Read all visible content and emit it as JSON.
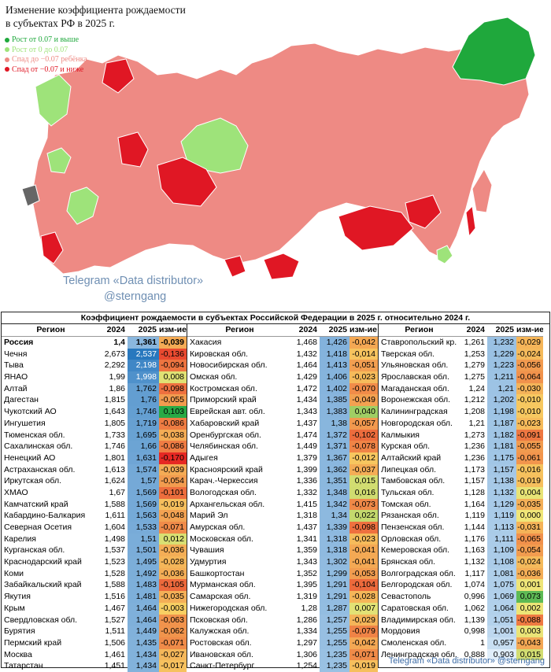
{
  "map": {
    "title_line1": "Изменение коэффициента рождаемости",
    "title_line2": "в субъектах РФ в 2025 г.",
    "legend": [
      {
        "label": "Рост от 0.07 и выше",
        "color": "#1fa83c"
      },
      {
        "label": "Рост от 0 до 0.07",
        "color": "#9ee37a"
      },
      {
        "label": "Спад до −0.07 ребёнка",
        "color": "#ee8a84"
      },
      {
        "label": "Спад от −0.07 и ниже",
        "color": "#e01724"
      }
    ],
    "watermark_line1": "Telegram «Data distributor»",
    "watermark_line2": "@sterngang"
  },
  "chart_data": {
    "type": "table",
    "title": "Коэффициент рождаемости в субъектах Российской Федерации в 2025 г. относительно 2024 г.",
    "headers": [
      "Регион",
      "2024",
      "2025",
      "изм-ие"
    ],
    "columns": [
      [
        [
          "Россия",
          "1,4",
          "1,361",
          "-0,039"
        ],
        [
          "Чечня",
          "2,673",
          "2,537",
          "-0,136"
        ],
        [
          "Тыва",
          "2,292",
          "2,198",
          "-0,094"
        ],
        [
          "ЯНАО",
          "1,99",
          "1,998",
          "0,008"
        ],
        [
          "Алтай",
          "1,86",
          "1,762",
          "-0,098"
        ],
        [
          "Дагестан",
          "1,815",
          "1,76",
          "-0,055"
        ],
        [
          "Чукотский АО",
          "1,643",
          "1,746",
          "0,103"
        ],
        [
          "Ингушетия",
          "1,805",
          "1,719",
          "-0,086"
        ],
        [
          "Тюменская обл.",
          "1,733",
          "1,695",
          "-0,038"
        ],
        [
          "Сахалинская обл.",
          "1,746",
          "1,66",
          "-0,086"
        ],
        [
          "Ненецкий АО",
          "1,801",
          "1,631",
          "-0,170"
        ],
        [
          "Астраханская обл.",
          "1,613",
          "1,574",
          "-0,039"
        ],
        [
          "Иркутская обл.",
          "1,624",
          "1,57",
          "-0,054"
        ],
        [
          "ХМАО",
          "1,67",
          "1,569",
          "-0,101"
        ],
        [
          "Камчатский край",
          "1,588",
          "1,569",
          "-0,019"
        ],
        [
          "Кабардино-Балкария",
          "1,611",
          "1,563",
          "-0,048"
        ],
        [
          "Северная Осетия",
          "1,604",
          "1,533",
          "-0,071"
        ],
        [
          "Карелия",
          "1,498",
          "1,51",
          "0,012"
        ],
        [
          "Курганская обл.",
          "1,537",
          "1,501",
          "-0,036"
        ],
        [
          "Краснодарский край",
          "1,523",
          "1,495",
          "-0,028"
        ],
        [
          "Коми",
          "1,528",
          "1,492",
          "-0,036"
        ],
        [
          "Забайкальский край",
          "1,588",
          "1,483",
          "-0,105"
        ],
        [
          "Якутия",
          "1,516",
          "1,481",
          "-0,035"
        ],
        [
          "Крым",
          "1,467",
          "1,464",
          "-0,003"
        ],
        [
          "Свердловская обл.",
          "1,527",
          "1,464",
          "-0,063"
        ],
        [
          "Бурятия",
          "1,511",
          "1,449",
          "-0,062"
        ],
        [
          "Пермский край",
          "1,506",
          "1,435",
          "-0,071"
        ],
        [
          "Москва",
          "1,461",
          "1,434",
          "-0,027"
        ],
        [
          "Татарстан",
          "1,451",
          "1,434",
          "-0,017"
        ]
      ],
      [
        [
          "Хакасия",
          "1,468",
          "1,426",
          "-0,042"
        ],
        [
          "Кировская обл.",
          "1,432",
          "1,418",
          "-0,014"
        ],
        [
          "Новосибирская обл.",
          "1,464",
          "1,413",
          "-0,051"
        ],
        [
          "Омская обл.",
          "1,429",
          "1,406",
          "-0,023"
        ],
        [
          "Костромская обл.",
          "1,472",
          "1,402",
          "-0,070"
        ],
        [
          "Приморский край",
          "1,434",
          "1,385",
          "-0,049"
        ],
        [
          "Еврейская авт. обл.",
          "1,343",
          "1,383",
          "0,040"
        ],
        [
          "Хабаровский край",
          "1,437",
          "1,38",
          "-0,057"
        ],
        [
          "Оренбургская обл.",
          "1,474",
          "1,372",
          "-0,102"
        ],
        [
          "Челябинская обл.",
          "1,449",
          "1,371",
          "-0,078"
        ],
        [
          "Адыгея",
          "1,379",
          "1,367",
          "-0,012"
        ],
        [
          "Красноярский край",
          "1,399",
          "1,362",
          "-0,037"
        ],
        [
          "Карач.-Черкессия",
          "1,336",
          "1,351",
          "0,015"
        ],
        [
          "Вологодская обл.",
          "1,332",
          "1,348",
          "0,016"
        ],
        [
          "Архангельская обл.",
          "1,415",
          "1,342",
          "-0,073"
        ],
        [
          "Марий Эл",
          "1,318",
          "1,34",
          "0,022"
        ],
        [
          "Амурская обл.",
          "1,437",
          "1,339",
          "-0,098"
        ],
        [
          "Московская обл.",
          "1,341",
          "1,318",
          "-0,023"
        ],
        [
          "Чувашия",
          "1,359",
          "1,318",
          "-0,041"
        ],
        [
          "Удмуртия",
          "1,343",
          "1,302",
          "-0,041"
        ],
        [
          "Башкортостан",
          "1,352",
          "1,299",
          "-0,053"
        ],
        [
          "Мурманская обл.",
          "1,395",
          "1,291",
          "-0,104"
        ],
        [
          "Самарская обл.",
          "1,319",
          "1,291",
          "-0,028"
        ],
        [
          "Нижегородская обл.",
          "1,28",
          "1,287",
          "0,007"
        ],
        [
          "Псковская обл.",
          "1,286",
          "1,257",
          "-0,029"
        ],
        [
          "Калужская обл.",
          "1,334",
          "1,255",
          "-0,079"
        ],
        [
          "Ростовская обл.",
          "1,297",
          "1,255",
          "-0,042"
        ],
        [
          "Ивановская обл.",
          "1,306",
          "1,235",
          "-0,071"
        ],
        [
          "Санкт-Петербург",
          "1,254",
          "1,235",
          "-0,019"
        ]
      ],
      [
        [
          "Ставропольский кр.",
          "1,261",
          "1,232",
          "-0,029"
        ],
        [
          "Тверская обл.",
          "1,253",
          "1,229",
          "-0,024"
        ],
        [
          "Ульяновская обл.",
          "1,279",
          "1,223",
          "-0,056"
        ],
        [
          "Ярославская обл.",
          "1,275",
          "1,211",
          "-0,064"
        ],
        [
          "Магаданская обл.",
          "1,24",
          "1,21",
          "-0,030"
        ],
        [
          "Воронежская обл.",
          "1,212",
          "1,202",
          "-0,010"
        ],
        [
          "Калининградская",
          "1,208",
          "1,198",
          "-0,010"
        ],
        [
          "Новгородская обл.",
          "1,21",
          "1,187",
          "-0,023"
        ],
        [
          "Калмыкия",
          "1,273",
          "1,182",
          "-0,091"
        ],
        [
          "Курская обл.",
          "1,236",
          "1,181",
          "-0,055"
        ],
        [
          "Алтайский край",
          "1,236",
          "1,175",
          "-0,061"
        ],
        [
          "Липецкая обл.",
          "1,173",
          "1,157",
          "-0,016"
        ],
        [
          "Тамбовская обл.",
          "1,157",
          "1,138",
          "-0,019"
        ],
        [
          "Тульская обл.",
          "1,128",
          "1,132",
          "0,004"
        ],
        [
          "Томская обл.",
          "1,164",
          "1,129",
          "-0,035"
        ],
        [
          "Рязанская обл.",
          "1,119",
          "1,119",
          "0,000"
        ],
        [
          "Пензенская обл.",
          "1,144",
          "1,113",
          "-0,031"
        ],
        [
          "Орловская обл.",
          "1,176",
          "1,111",
          "-0,065"
        ],
        [
          "Кемеровская обл.",
          "1,163",
          "1,109",
          "-0,054"
        ],
        [
          "Брянская обл.",
          "1,132",
          "1,108",
          "-0,024"
        ],
        [
          "Волгоградская обл.",
          "1,117",
          "1,081",
          "-0,036"
        ],
        [
          "Белгородская обл.",
          "1,074",
          "1,075",
          "0,001"
        ],
        [
          "Севастополь",
          "0,996",
          "1,069",
          "0,073"
        ],
        [
          "Саратовская обл.",
          "1,062",
          "1,064",
          "0,002"
        ],
        [
          "Владимирская обл.",
          "1,139",
          "1,051",
          "-0,088"
        ],
        [
          "Мордовия",
          "0,998",
          "1,001",
          "0,003"
        ],
        [
          "Смоленская обл.",
          "1",
          "0,957",
          "-0,043"
        ],
        [
          "Ленинградская обл.",
          "0,888",
          "0,903",
          "0,015"
        ],
        [
          "",
          "",
          "",
          ""
        ]
      ]
    ],
    "footer": "Telegram «Data distributor» @sterngang"
  }
}
